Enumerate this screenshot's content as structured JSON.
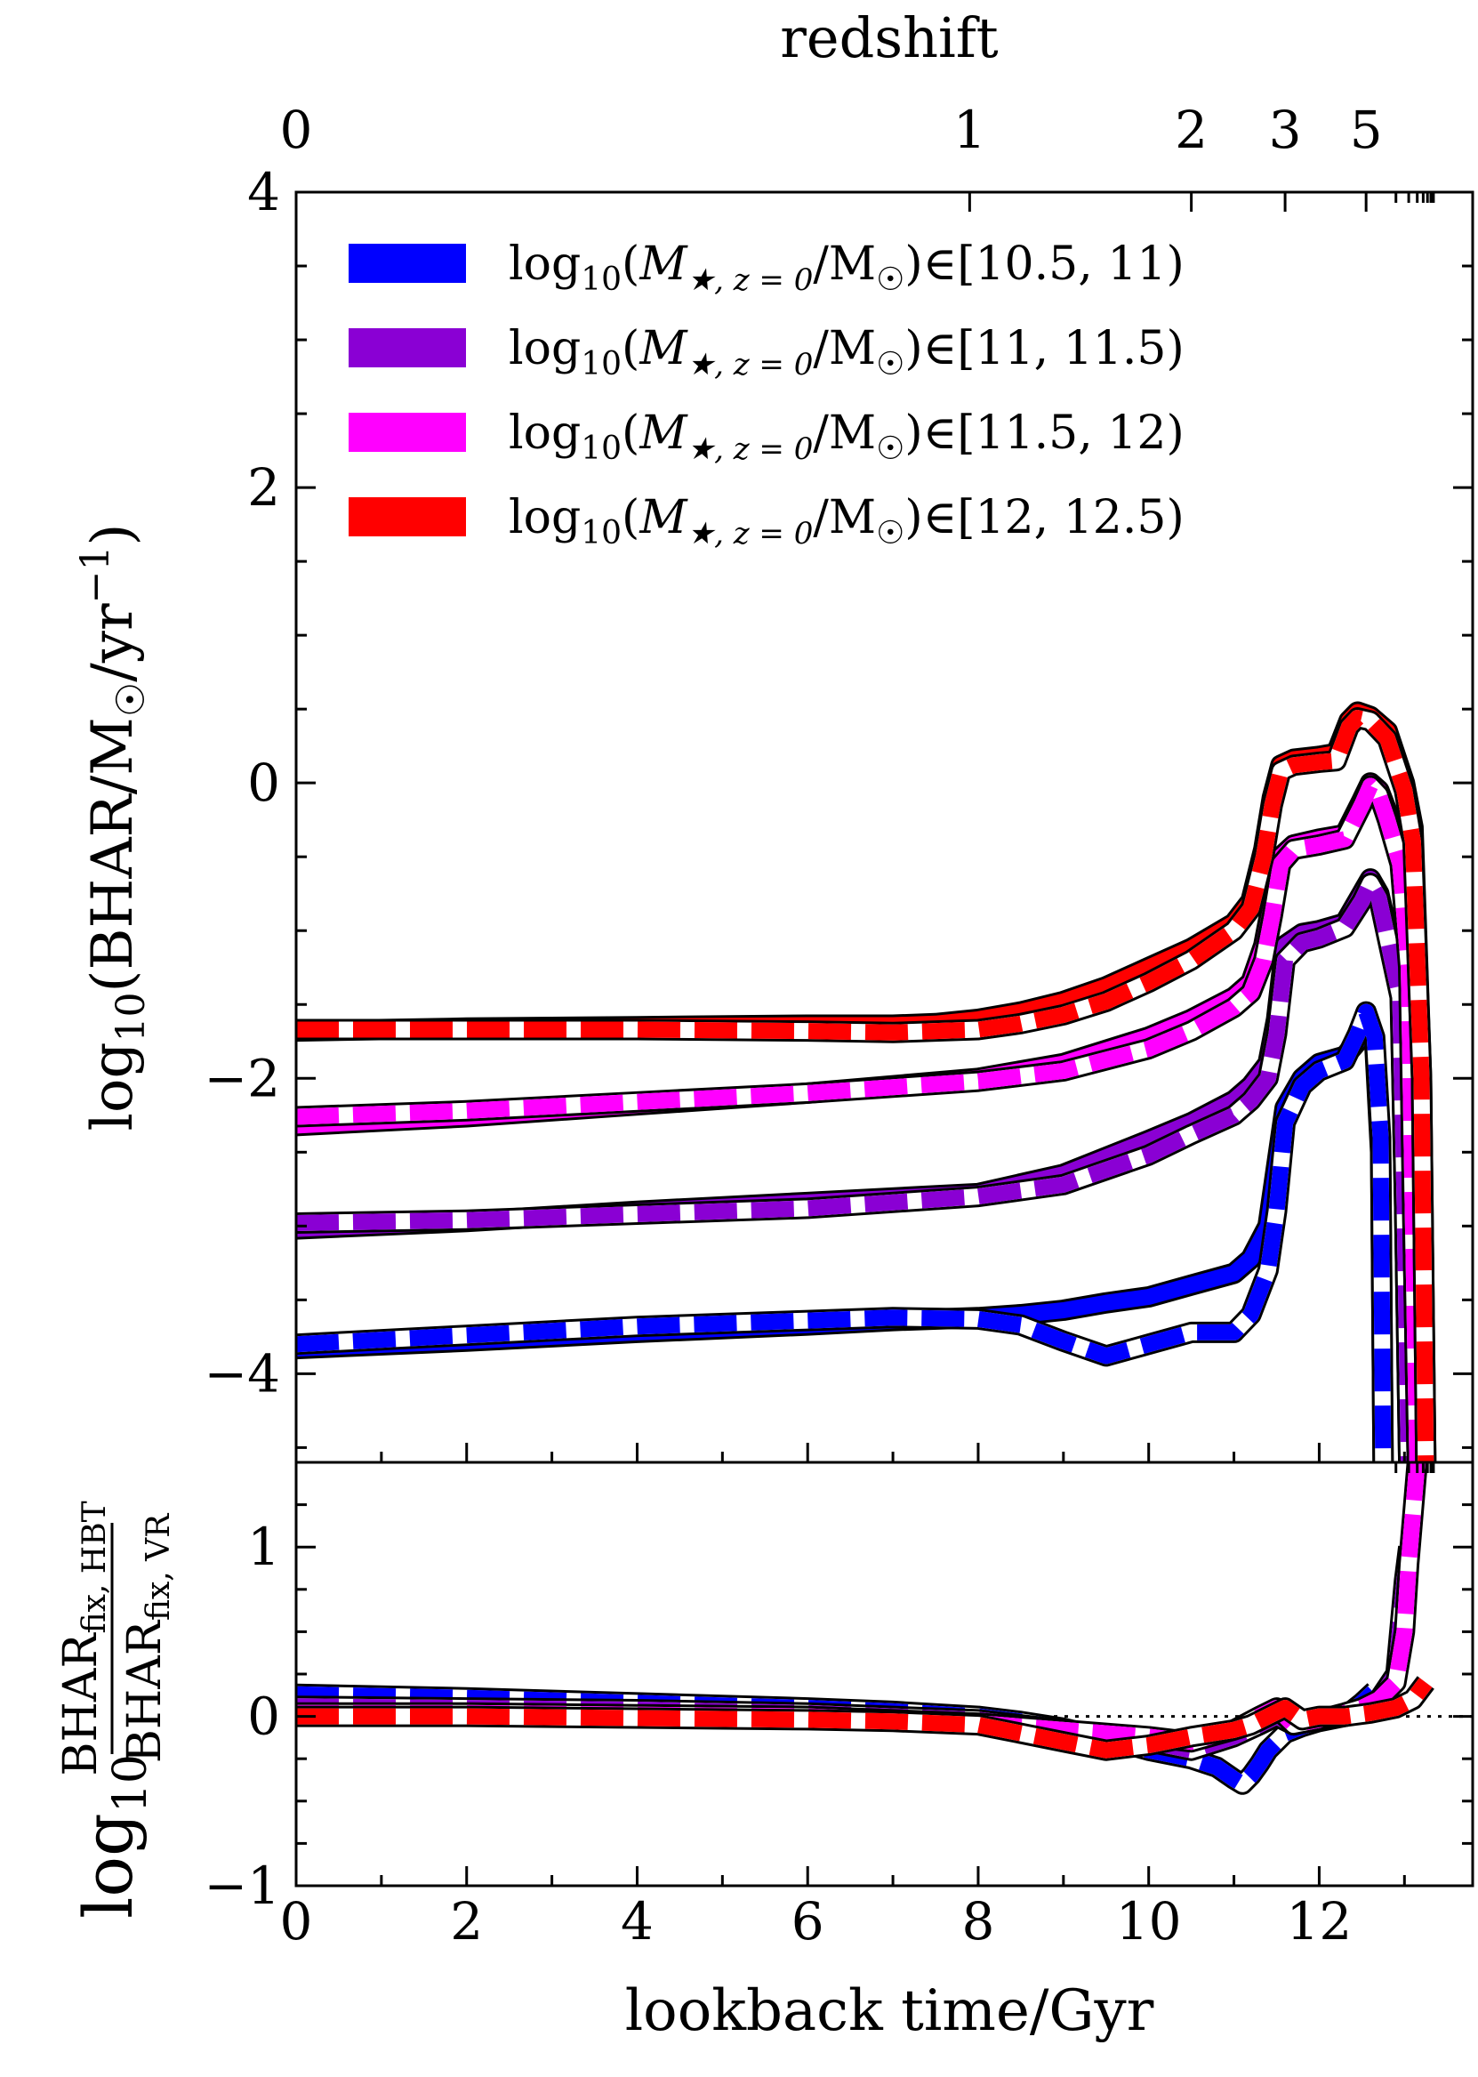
{
  "chart_data": [
    {
      "panel": "top",
      "type": "line",
      "xlabel": "lookback time/Gyr",
      "ylabel": "log10(BHAR/M☉/yr⁻¹)",
      "ylabel_parts": {
        "pre": "log",
        "sub": "10",
        "mid": "(BHAR/M",
        "sun": "☉",
        "post": "/yr",
        "sup": "−1",
        "close": ")"
      },
      "xlim": [
        0,
        13.8
      ],
      "ylim": [
        -4.6,
        4
      ],
      "xticks": [
        0,
        2,
        4,
        6,
        8,
        10,
        12
      ],
      "yticks": [
        4,
        2,
        0,
        -2,
        -4
      ],
      "ytick_labels": [
        "4",
        "2",
        "0",
        "−2",
        "−4"
      ],
      "top_axis": {
        "label": "redshift",
        "ticks": [
          {
            "z": "0",
            "t": 0
          },
          {
            "z": "1",
            "t": 7.9
          },
          {
            "z": "2",
            "t": 10.5
          },
          {
            "z": "3",
            "t": 11.6
          },
          {
            "z": "5",
            "t": 12.55
          }
        ],
        "minor_t": [
          12.9,
          13.05,
          13.15,
          13.22,
          13.27,
          13.31,
          13.34
        ]
      },
      "legend": {
        "position": "top-left",
        "entries": [
          {
            "label_range": "[10.5, 11)",
            "color": "#0000ff"
          },
          {
            "label_range": "[11, 11.5)",
            "color": "#8a00d4"
          },
          {
            "label_range": "[11.5, 12)",
            "color": "#ff00ff"
          },
          {
            "label_range": "[12, 12.5)",
            "color": "#ff0000"
          }
        ],
        "label_prefix": {
          "pre": "log",
          "sub": "10",
          "open": "(",
          "M": "M",
          "msub": "★, z = 0",
          "slash": "/M",
          "sun": "☉",
          "close": ")",
          "in": "∈"
        }
      },
      "series": [
        {
          "name": "[10.5, 11) HBT",
          "color": "#0000ff",
          "style": "solid",
          "x": [
            0,
            2,
            4,
            6,
            7,
            8,
            8.5,
            9,
            9.5,
            10,
            10.5,
            11,
            11.2,
            11.4,
            11.5,
            11.6,
            11.8,
            12,
            12.3,
            12.45,
            12.55,
            12.65,
            12.72,
            12.75
          ],
          "y": [
            -3.83,
            -3.78,
            -3.72,
            -3.67,
            -3.64,
            -3.62,
            -3.6,
            -3.57,
            -3.52,
            -3.48,
            -3.4,
            -3.32,
            -3.22,
            -3.0,
            -2.6,
            -2.2,
            -2.0,
            -1.9,
            -1.85,
            -1.75,
            -1.6,
            -1.75,
            -2.5,
            -4.6
          ]
        },
        {
          "name": "[10.5, 11) VR",
          "color": "#0000ff",
          "style": "dashed",
          "x": [
            0,
            2,
            4,
            6,
            7,
            8,
            8.5,
            9,
            9.5,
            10,
            10.5,
            11,
            11.2,
            11.4,
            11.5,
            11.6,
            11.8,
            12,
            12.3,
            12.45,
            12.55,
            12.65,
            12.72,
            12.75
          ],
          "y": [
            -3.8,
            -3.74,
            -3.68,
            -3.64,
            -3.62,
            -3.63,
            -3.67,
            -3.78,
            -3.88,
            -3.8,
            -3.72,
            -3.72,
            -3.6,
            -3.3,
            -2.9,
            -2.3,
            -2.05,
            -1.95,
            -1.88,
            -1.7,
            -1.55,
            -1.72,
            -2.4,
            -4.6
          ]
        },
        {
          "name": "[11, 11.5) HBT",
          "color": "#8a00d4",
          "style": "solid",
          "x": [
            0,
            2,
            4,
            6,
            8,
            9,
            10,
            10.5,
            11,
            11.2,
            11.4,
            11.5,
            11.6,
            11.8,
            12,
            12.3,
            12.5,
            12.6,
            12.7,
            12.8,
            12.95,
            13.0,
            13.05
          ],
          "y": [
            -3.02,
            -2.97,
            -2.9,
            -2.84,
            -2.78,
            -2.65,
            -2.42,
            -2.3,
            -2.15,
            -2.05,
            -1.9,
            -1.6,
            -1.1,
            -1.02,
            -1.0,
            -0.95,
            -0.75,
            -0.65,
            -0.75,
            -1.0,
            -1.4,
            -2.8,
            -4.6
          ]
        },
        {
          "name": "[11, 11.5) VR",
          "color": "#8a00d4",
          "style": "dashed",
          "x": [
            0,
            2,
            4,
            6,
            8,
            9,
            10,
            10.5,
            11,
            11.2,
            11.4,
            11.5,
            11.6,
            11.8,
            12,
            12.3,
            12.5,
            12.6,
            12.7,
            12.8,
            12.95,
            13.0,
            13.05
          ],
          "y": [
            -2.98,
            -2.96,
            -2.92,
            -2.88,
            -2.8,
            -2.72,
            -2.52,
            -2.38,
            -2.25,
            -2.15,
            -2.0,
            -1.7,
            -1.2,
            -1.08,
            -1.05,
            -0.98,
            -0.8,
            -0.68,
            -0.78,
            -1.05,
            -1.45,
            -2.8,
            -4.6
          ]
        },
        {
          "name": "[11.5, 12) HBT",
          "color": "#ff00ff",
          "style": "solid",
          "x": [
            0,
            2,
            4,
            6,
            8,
            9,
            10,
            10.5,
            11,
            11.2,
            11.35,
            11.45,
            11.55,
            11.7,
            12,
            12.3,
            12.5,
            12.6,
            12.7,
            12.8,
            12.95,
            13.05,
            13.1,
            13.15
          ],
          "y": [
            -2.32,
            -2.26,
            -2.18,
            -2.1,
            -2.0,
            -1.9,
            -1.72,
            -1.6,
            -1.45,
            -1.35,
            -1.1,
            -0.8,
            -0.5,
            -0.42,
            -0.38,
            -0.35,
            -0.12,
            0.0,
            -0.05,
            -0.2,
            -0.5,
            -1.2,
            -3.0,
            -4.6
          ]
        },
        {
          "name": "[11.5, 12) VR",
          "color": "#ff00ff",
          "style": "dashed",
          "x": [
            0,
            2,
            4,
            6,
            8,
            9,
            10,
            10.5,
            11,
            11.2,
            11.35,
            11.45,
            11.55,
            11.7,
            12,
            12.3,
            12.5,
            12.6,
            12.7,
            12.8,
            12.95,
            13.05,
            13.1,
            13.15
          ],
          "y": [
            -2.26,
            -2.22,
            -2.16,
            -2.1,
            -2.02,
            -1.95,
            -1.8,
            -1.68,
            -1.52,
            -1.42,
            -1.2,
            -0.9,
            -0.55,
            -0.45,
            -0.42,
            -0.38,
            -0.15,
            -0.02,
            -0.08,
            -0.25,
            -0.55,
            -1.25,
            -3.0,
            -4.6
          ]
        },
        {
          "name": "[12, 12.5) HBT",
          "color": "#ff0000",
          "style": "solid",
          "x": [
            0,
            2,
            4,
            6,
            7,
            7.5,
            8,
            8.5,
            9,
            9.5,
            10,
            10.5,
            11,
            11.2,
            11.35,
            11.45,
            11.55,
            11.7,
            12,
            12.2,
            12.35,
            12.45,
            12.6,
            12.8,
            13.0,
            13.1,
            13.2,
            13.25
          ],
          "y": [
            -1.68,
            -1.66,
            -1.65,
            -1.64,
            -1.64,
            -1.63,
            -1.6,
            -1.55,
            -1.48,
            -1.38,
            -1.25,
            -1.12,
            -0.95,
            -0.8,
            -0.45,
            -0.1,
            0.12,
            0.16,
            0.18,
            0.2,
            0.42,
            0.48,
            0.45,
            0.35,
            0.0,
            -0.3,
            -2.0,
            -4.6
          ]
        },
        {
          "name": "[12, 12.5) VR",
          "color": "#ff0000",
          "style": "dashed",
          "x": [
            0,
            2,
            4,
            6,
            7,
            7.5,
            8,
            8.5,
            9,
            9.5,
            10,
            10.5,
            11,
            11.2,
            11.35,
            11.45,
            11.55,
            11.7,
            12,
            12.2,
            12.35,
            12.45,
            12.6,
            12.8,
            13.0,
            13.1,
            13.2,
            13.25
          ],
          "y": [
            -1.67,
            -1.67,
            -1.67,
            -1.68,
            -1.69,
            -1.68,
            -1.67,
            -1.63,
            -1.57,
            -1.48,
            -1.35,
            -1.2,
            -1.0,
            -0.85,
            -0.5,
            -0.15,
            0.08,
            0.12,
            0.14,
            0.15,
            0.38,
            0.44,
            0.42,
            0.3,
            -0.05,
            -0.4,
            -2.0,
            -4.6
          ]
        }
      ]
    },
    {
      "panel": "bottom",
      "type": "line",
      "xlabel": "lookback time/Gyr",
      "ylabel": "log10 BHAR_fix, HBT / BHAR_fix, VR",
      "ylabel_parts": {
        "log": "log",
        "sub": "10",
        "num": "BHAR",
        "num_sub": "fix, HBT",
        "den": "BHAR",
        "den_sub": "fix, VR"
      },
      "xlim": [
        0,
        13.8
      ],
      "ylim": [
        -1,
        1.5
      ],
      "xticks": [
        0,
        2,
        4,
        6,
        8,
        10,
        12
      ],
      "xtick_labels": [
        "0",
        "2",
        "4",
        "6",
        "8",
        "10",
        "12"
      ],
      "yticks": [
        1,
        0,
        -1
      ],
      "ytick_labels": [
        "1",
        "0",
        "−1"
      ],
      "reference_line": {
        "y": 0,
        "style": "dotted"
      },
      "series": [
        {
          "name": "[10.5, 11)",
          "color": "#0000ff",
          "x": [
            0,
            2,
            4,
            6,
            7,
            8,
            8.5,
            9,
            9.5,
            10,
            10.5,
            10.8,
            11.0,
            11.1,
            11.2,
            11.3,
            11.4,
            11.5,
            11.6,
            11.8,
            12,
            12.3,
            12.5,
            12.65
          ],
          "y": [
            0.13,
            0.11,
            0.08,
            0.05,
            0.03,
            0.0,
            -0.03,
            -0.07,
            -0.13,
            -0.2,
            -0.25,
            -0.3,
            -0.37,
            -0.4,
            -0.35,
            -0.28,
            -0.2,
            -0.15,
            -0.1,
            -0.06,
            -0.03,
            0.0,
            0.08,
            0.15
          ]
        },
        {
          "name": "[11, 11.5)",
          "color": "#8a00d4",
          "x": [
            0,
            2,
            4,
            6,
            8,
            9,
            10,
            10.5,
            11,
            11.3,
            11.5,
            11.7,
            12,
            12.3,
            12.5,
            12.7,
            12.9,
            13.0,
            13.05
          ],
          "y": [
            0.06,
            0.05,
            0.04,
            0.02,
            -0.02,
            -0.08,
            -0.15,
            -0.2,
            -0.12,
            -0.05,
            0.0,
            -0.05,
            -0.02,
            0.0,
            0.05,
            0.1,
            0.25,
            0.8,
            1.0
          ]
        },
        {
          "name": "[11.5, 12)",
          "color": "#ff00ff",
          "x": [
            0,
            2,
            4,
            6,
            8,
            9,
            10,
            10.5,
            11,
            11.3,
            11.5,
            11.7,
            12,
            12.3,
            12.5,
            12.7,
            12.9,
            13.0,
            13.05,
            13.1,
            13.15
          ],
          "y": [
            0.02,
            0.02,
            0.01,
            0.0,
            -0.04,
            -0.08,
            -0.12,
            -0.15,
            -0.08,
            0.0,
            0.05,
            -0.05,
            -0.02,
            0.02,
            0.05,
            0.1,
            0.2,
            0.5,
            0.9,
            1.2,
            1.5
          ]
        },
        {
          "name": "[12, 12.5)",
          "color": "#ff0000",
          "x": [
            0,
            2,
            4,
            6,
            7,
            8,
            8.5,
            9,
            9.5,
            10,
            10.5,
            11,
            11.2,
            11.4,
            11.6,
            11.8,
            12,
            12.3,
            12.6,
            12.9,
            13.1,
            13.25
          ],
          "y": [
            0.0,
            0.0,
            -0.01,
            -0.02,
            -0.03,
            -0.05,
            -0.1,
            -0.15,
            -0.2,
            -0.17,
            -0.12,
            -0.08,
            -0.05,
            0.0,
            0.05,
            -0.02,
            0.0,
            0.0,
            0.02,
            0.05,
            0.1,
            0.2
          ]
        }
      ]
    }
  ]
}
